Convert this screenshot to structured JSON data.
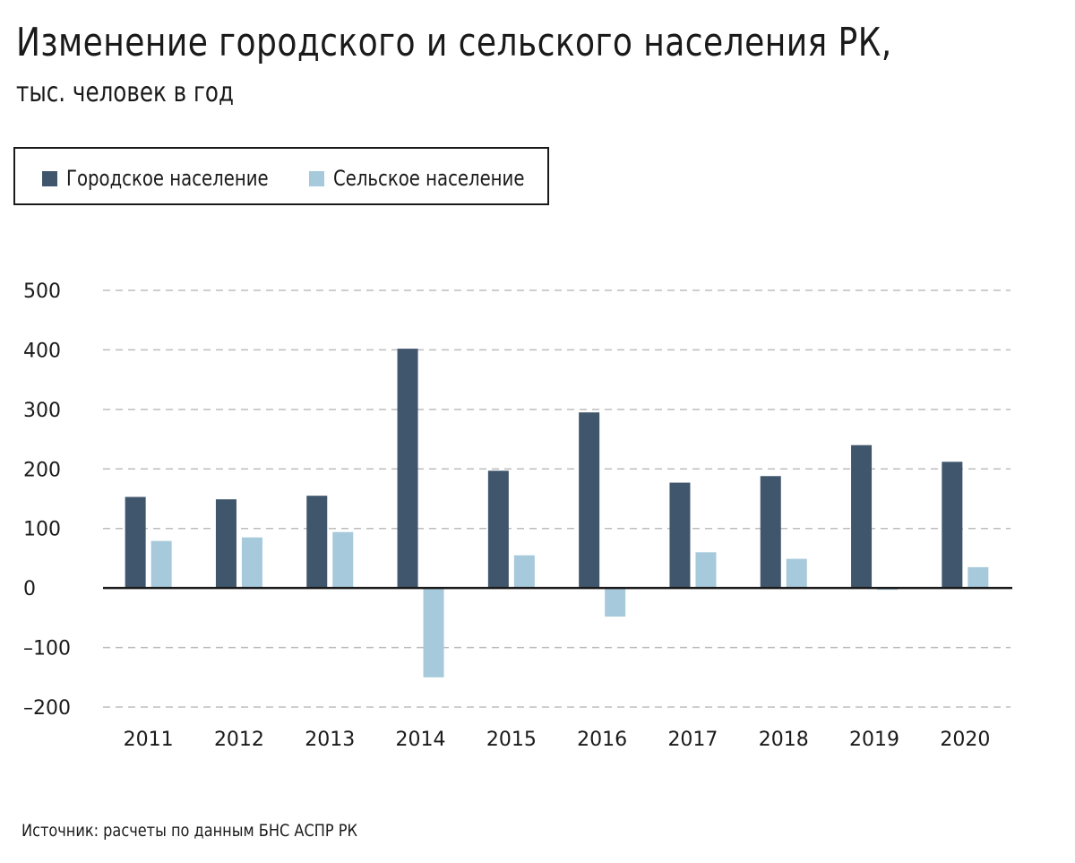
{
  "header": {
    "title": "Изменение городского и сельского населения РК,",
    "subtitle": "тыс. человек в год"
  },
  "legend": {
    "items": [
      {
        "label": "Городское население",
        "color": "#40566d"
      },
      {
        "label": "Сельское население",
        "color": "#a6c9dc"
      }
    ]
  },
  "footer": {
    "source": "Источник: расчеты по данным БНС АСПР РК"
  },
  "chart_data": {
    "type": "bar",
    "title": "Изменение городского и сельского населения РК,",
    "subtitle": "тыс. человек в год",
    "categories": [
      "2011",
      "2012",
      "2013",
      "2014",
      "2015",
      "2016",
      "2017",
      "2018",
      "2019",
      "2020"
    ],
    "series": [
      {
        "name": "Городское население",
        "color": "#40566d",
        "values": [
          153,
          149,
          155,
          402,
          197,
          295,
          177,
          188,
          240,
          212
        ]
      },
      {
        "name": "Сельское население",
        "color": "#a6c9dc",
        "values": [
          79,
          85,
          94,
          -150,
          55,
          -48,
          60,
          49,
          -3,
          35
        ]
      }
    ],
    "ylim": [
      -200,
      500
    ],
    "yticks": [
      500,
      400,
      300,
      200,
      100,
      0,
      -100,
      -200
    ],
    "ytick_labels": [
      "500",
      "400",
      "300",
      "200",
      "100",
      "0",
      "–100",
      "–200"
    ],
    "grid": true,
    "legend_position": "top-left",
    "xlabel": "",
    "ylabel": ""
  }
}
